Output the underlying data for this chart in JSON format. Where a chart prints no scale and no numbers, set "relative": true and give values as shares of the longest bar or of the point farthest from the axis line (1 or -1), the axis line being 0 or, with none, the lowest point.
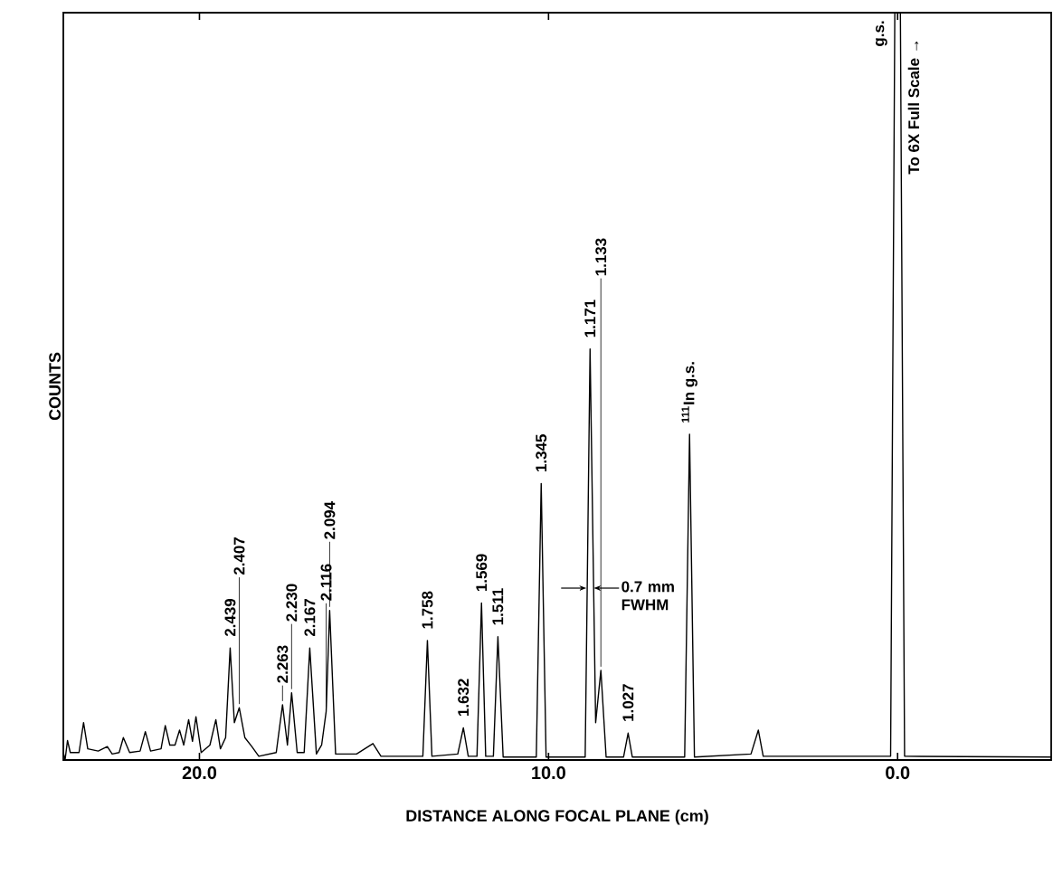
{
  "chart_data": {
    "type": "line",
    "relative": true,
    "xlabel": "DISTANCE ALONG FOCAL PLANE  (cm)",
    "ylabel": "COUNTS",
    "xlim": [
      23.9,
      -4.4
    ],
    "xticks": [
      {
        "value": 20,
        "label": "20.0"
      },
      {
        "value": 10,
        "label": "10.0"
      },
      {
        "value": 0,
        "label": "0.0"
      }
    ],
    "series": [
      {
        "color": "#000000",
        "x": [
          23.9,
          23.85,
          23.78,
          23.7,
          23.45,
          23.32,
          23.2,
          22.9,
          22.64,
          22.5,
          22.3,
          22.18,
          22.0,
          21.7,
          21.55,
          21.4,
          21.1,
          20.98,
          20.85,
          20.7,
          20.57,
          20.45,
          20.31,
          20.2,
          20.1,
          19.95,
          19.7,
          19.53,
          19.4,
          19.25,
          19.12,
          19.0,
          18.86,
          18.7,
          18.5,
          18.3,
          17.8,
          17.62,
          17.48,
          17.36,
          17.2,
          17.0,
          16.84,
          16.65,
          16.5,
          16.37,
          16.27,
          16.1,
          15.5,
          15.03,
          14.8,
          13.6,
          13.47,
          13.34,
          12.6,
          12.44,
          12.3,
          12.05,
          11.92,
          11.8,
          11.58,
          11.45,
          11.3,
          10.35,
          10.21,
          10.07,
          8.95,
          8.81,
          8.65,
          8.5,
          8.35,
          7.85,
          7.72,
          7.6,
          6.1,
          5.96,
          5.82,
          4.2,
          3.99,
          3.85,
          0.2,
          0.08,
          -0.08,
          -0.2,
          -4.4
        ],
        "values": [
          0.01,
          0.0,
          0.026,
          0.01,
          0.01,
          0.05,
          0.015,
          0.012,
          0.018,
          0.008,
          0.01,
          0.03,
          0.01,
          0.012,
          0.038,
          0.012,
          0.015,
          0.046,
          0.02,
          0.02,
          0.04,
          0.02,
          0.054,
          0.025,
          0.058,
          0.01,
          0.02,
          0.054,
          0.015,
          0.03,
          0.15,
          0.05,
          0.07,
          0.03,
          0.018,
          0.005,
          0.01,
          0.074,
          0.02,
          0.09,
          0.01,
          0.01,
          0.15,
          0.008,
          0.02,
          0.065,
          0.2,
          0.008,
          0.008,
          0.022,
          0.005,
          0.005,
          0.16,
          0.005,
          0.008,
          0.043,
          0.005,
          0.005,
          0.21,
          0.005,
          0.005,
          0.165,
          0.004,
          0.004,
          0.37,
          0.004,
          0.004,
          0.55,
          0.05,
          0.12,
          0.004,
          0.004,
          0.036,
          0.004,
          0.004,
          0.436,
          0.004,
          0.008,
          0.04,
          0.005,
          0.005,
          1.0,
          1.0,
          0.005,
          0.004
        ]
      }
    ],
    "annotations": [
      {
        "text": "2.439",
        "x": 19.12,
        "y": 0.15
      },
      {
        "text": "2.407",
        "x": 18.86,
        "y": 0.07
      },
      {
        "text": "2.263",
        "x": 17.62,
        "y": 0.074
      },
      {
        "text": "2.230",
        "x": 17.36,
        "y": 0.09
      },
      {
        "text": "2.167",
        "x": 16.84,
        "y": 0.15
      },
      {
        "text": "2.116",
        "x": 16.37,
        "y": 0.065
      },
      {
        "text": "2.094",
        "x": 16.27,
        "y": 0.2
      },
      {
        "text": "1.758",
        "x": 13.47,
        "y": 0.16
      },
      {
        "text": "1.632",
        "x": 12.44,
        "y": 0.043
      },
      {
        "text": "1.569",
        "x": 11.92,
        "y": 0.21
      },
      {
        "text": "1.511",
        "x": 11.45,
        "y": 0.165
      },
      {
        "text": "1.345",
        "x": 10.21,
        "y": 0.37
      },
      {
        "text": "1.171",
        "x": 8.81,
        "y": 0.55
      },
      {
        "text": "1.133",
        "x": 8.5,
        "y": 0.12
      },
      {
        "text": "1.027",
        "x": 7.72,
        "y": 0.036
      },
      {
        "text": "$^{111}$In g.s.",
        "x": 5.96,
        "y": 0.436
      },
      {
        "text": "g.s.",
        "x": 0.08,
        "y": 1.0
      },
      {
        "text": "To 6X Full Scale →",
        "x": -0.08,
        "y": 1.0
      },
      {
        "text": "0.7 mm FWHM",
        "x": 8.81,
        "y": 0.23
      }
    ]
  }
}
